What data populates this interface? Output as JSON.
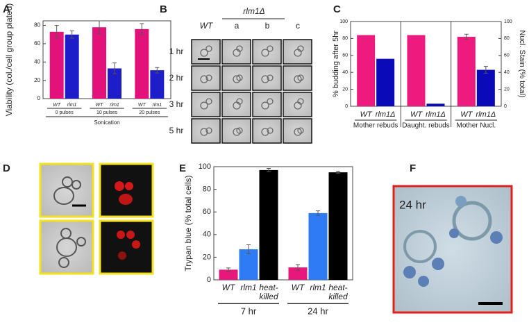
{
  "panels": [
    "A",
    "B",
    "C",
    "D",
    "E",
    "F"
  ],
  "micrograph_b": {
    "col_header": "rlm1Δ",
    "columns": [
      "WT",
      "a",
      "b",
      "c"
    ],
    "rows": [
      "1 hr",
      "2 hr",
      "3 hr",
      "5 hr"
    ]
  },
  "micrograph_f": {
    "label": "24 hr"
  },
  "chart_data": [
    {
      "type": "bar",
      "y_label": "Viability (col./cell group plated)",
      "categories": [
        "0 pulses",
        "10 pulses",
        "20 pulses"
      ],
      "group_label": "Sonication",
      "series": [
        {
          "name": "WT",
          "color": "#e3127b",
          "values": [
            73,
            78,
            76
          ],
          "errors": [
            7,
            7,
            6
          ]
        },
        {
          "name": "rlm1",
          "color": "#1d1dc9",
          "values": [
            70,
            33,
            31
          ],
          "errors": [
            4,
            6,
            3
          ]
        }
      ],
      "ylim": [
        0,
        85
      ],
      "yticks": [
        0,
        20,
        40,
        60,
        80
      ]
    },
    {
      "type": "bar",
      "y_label": "% budding after 5hr",
      "y2_label": "Nucl. Stain (% total)",
      "categories": [
        "Mother rebuds",
        "Daught. rebuds",
        "Mother Nucl."
      ],
      "series": [
        {
          "name": "WT",
          "color": "#ef1a7d",
          "values": [
            84,
            84,
            82
          ],
          "errors": [
            null,
            null,
            3
          ]
        },
        {
          "name": "rlm1Δ",
          "color": "#0a0ab8",
          "values": [
            56,
            3,
            43
          ],
          "errors": [
            null,
            null,
            4
          ]
        }
      ],
      "ylim": [
        0,
        100
      ],
      "yticks": [
        0,
        20,
        40,
        60,
        80,
        100
      ],
      "y2lim": [
        0,
        100
      ],
      "y2ticks": [
        0,
        20,
        40,
        60,
        80,
        100
      ]
    },
    {
      "type": "bar",
      "y_label": "Trypan blue (% total cells)",
      "categories": [
        "7 hr",
        "24 hr"
      ],
      "series": [
        {
          "name": "WT",
          "color": "#e8177b",
          "values": [
            9,
            11
          ],
          "errors": [
            1.5,
            2.5
          ]
        },
        {
          "name": "rlm1",
          "color": "#2f7bf5",
          "values": [
            27,
            59
          ],
          "errors": [
            4,
            2
          ]
        },
        {
          "name": "heat-\nkilled",
          "color": "#000000",
          "values": [
            97,
            95
          ],
          "errors": [
            1.5,
            1
          ]
        }
      ],
      "ylim": [
        0,
        100
      ],
      "yticks": [
        0,
        20,
        40,
        60,
        80,
        100
      ]
    }
  ]
}
